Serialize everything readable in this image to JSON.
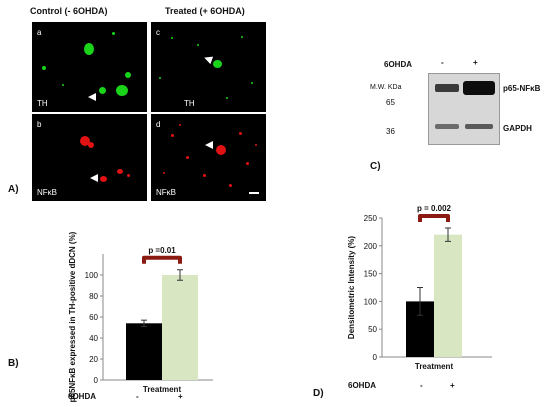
{
  "panelA": {
    "header_left": "Control (- 6OHDA)",
    "header_right": "Treated (+ 6OHDA)",
    "label_a": "a",
    "label_b": "b",
    "label_c": "c",
    "label_d": "d",
    "stain_th_1": "TH",
    "stain_th_2": "TH",
    "stain_nfkb_1": "NFκB",
    "stain_nfkb_2": "NFκB",
    "figure_letter": "A)"
  },
  "panelC": {
    "treatment_label": "6OHDA",
    "minus": "-",
    "plus": "+",
    "mw_label": "M.W. KDa",
    "mw_65": "65",
    "mw_36": "36",
    "band_p65": "p65-NFκB",
    "band_gapdh": "GAPDH",
    "figure_letter": "C)"
  },
  "panelB": {
    "figure_letter": "B)",
    "treatment_row_label": "6OHDA",
    "xlabel": "Treatment",
    "minus": "-",
    "plus": "+"
  },
  "panelD": {
    "figure_letter": "D)",
    "treatment_row_label": "6OHDA",
    "xlabel": "Treatment",
    "minus": "-",
    "plus": "+"
  },
  "chart_data": [
    {
      "type": "bar",
      "categories": [
        "-",
        "+"
      ],
      "values": [
        54,
        100
      ],
      "errors": [
        3,
        5
      ],
      "colors": [
        "#000000",
        "#d8e6c2"
      ],
      "ylabel": "p65NFκB expressed in TH-positive dDCN (%)",
      "xlabel": "Treatment",
      "ylim": [
        0,
        120
      ],
      "yticks": [
        0,
        20,
        40,
        60,
        80,
        100
      ],
      "annotation": "p =0.01",
      "grid": false
    },
    {
      "type": "bar",
      "categories": [
        "-",
        "+"
      ],
      "values": [
        100,
        220
      ],
      "errors": [
        25,
        12
      ],
      "colors": [
        "#000000",
        "#d8e6c2"
      ],
      "ylabel": "Densitometric Intensity (%)",
      "xlabel": "Treatment",
      "ylim": [
        0,
        250
      ],
      "yticks": [
        0,
        50,
        100,
        150,
        200,
        250
      ],
      "annotation": "p = 0.002",
      "grid": false
    }
  ]
}
